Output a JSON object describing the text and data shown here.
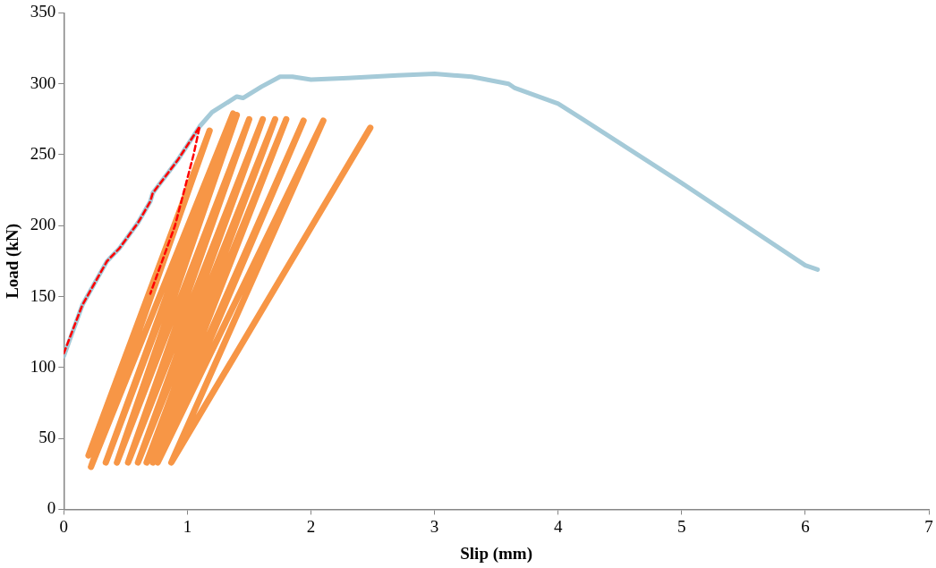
{
  "chart_data": {
    "type": "line",
    "xlabel": "Slip (mm)",
    "ylabel": "Load (kN)",
    "xlim": [
      0,
      7
    ],
    "xticks": [
      0,
      1,
      2,
      3,
      4,
      5,
      6,
      7
    ],
    "ylim": [
      0,
      350
    ],
    "yticks": [
      0,
      50,
      100,
      150,
      200,
      250,
      300,
      350
    ],
    "grid": false,
    "legend": false,
    "marker": "none",
    "series": [
      {
        "color": "#f79646",
        "line_style": "solid",
        "x": [
          0.2,
          1.18,
          0.22,
          1.37,
          0.34,
          1.4,
          0.43,
          1.5,
          0.52,
          1.61,
          0.6,
          1.71,
          0.67,
          1.8,
          0.72,
          1.94,
          0.76,
          2.1,
          0.87,
          2.48
        ],
        "values": [
          38,
          267,
          30,
          279,
          33,
          278,
          33,
          275,
          33,
          275,
          33,
          275,
          33,
          275,
          33,
          274,
          33,
          274,
          33,
          269
        ]
      },
      {
        "color": "#a5cad8",
        "line_style": "solid",
        "x": [
          0,
          0.15,
          0.35,
          0.45,
          0.6,
          0.7,
          0.72,
          0.92,
          1.1,
          1.2,
          1.4,
          1.45,
          1.6,
          1.75,
          1.85,
          2.0,
          2.3,
          2.7,
          3.0,
          3.3,
          3.6,
          3.65,
          4.0,
          4.2,
          5.0,
          6.0,
          6.1
        ],
        "values": [
          108,
          144,
          175,
          184,
          202,
          217,
          223,
          246,
          270,
          280,
          291,
          290,
          298,
          305,
          305,
          303,
          304,
          306,
          307,
          305,
          300,
          297,
          286,
          275,
          230,
          172,
          169
        ]
      },
      {
        "color": "#ff0000",
        "line_style": "dashed",
        "x": [
          0,
          0.15,
          0.35,
          0.45,
          0.6,
          0.7,
          0.72,
          0.92,
          1.1,
          1.05,
          0.9,
          0.7
        ],
        "values": [
          110,
          144,
          175,
          184,
          202,
          217,
          223,
          246,
          270,
          250,
          200,
          152
        ]
      }
    ]
  }
}
